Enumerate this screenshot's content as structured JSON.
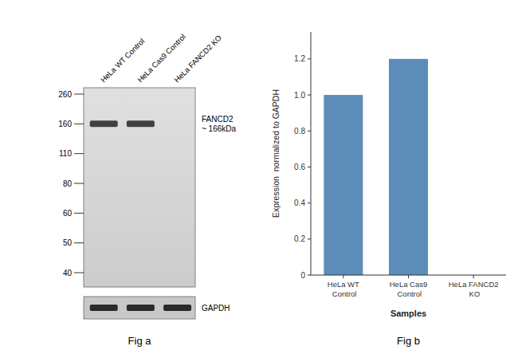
{
  "chart_data": [
    {
      "type": "blot",
      "categories": [
        "HeLa WT Control",
        "HeLa Cas9 Control",
        "HeLa FANCD2 KO"
      ],
      "ladder": [
        "260",
        "160",
        "110",
        "80",
        "60",
        "50",
        "40"
      ],
      "annotations": [
        "FANCD2\n~ 166kDa",
        "GAPDH",
        "Fig a"
      ]
    },
    {
      "type": "bar",
      "categories": [
        "HeLa WT Control",
        "HeLa Cas9 Control",
        "HeLa FANCD2 KO"
      ],
      "values": [
        1.0,
        1.2,
        0.0
      ],
      "color": "#5B8DB8",
      "xlabel": "Samples",
      "ylabel": "Expression  normalized to GAPDH",
      "ylim": [
        0,
        1.35
      ],
      "yticks": [
        0,
        0.2,
        0.4,
        0.6,
        0.8,
        {
          "value": 1.0,
          "label": "1.0"
        },
        1.2
      ],
      "grid": false,
      "annotations": [
        "Fig b"
      ]
    }
  ]
}
